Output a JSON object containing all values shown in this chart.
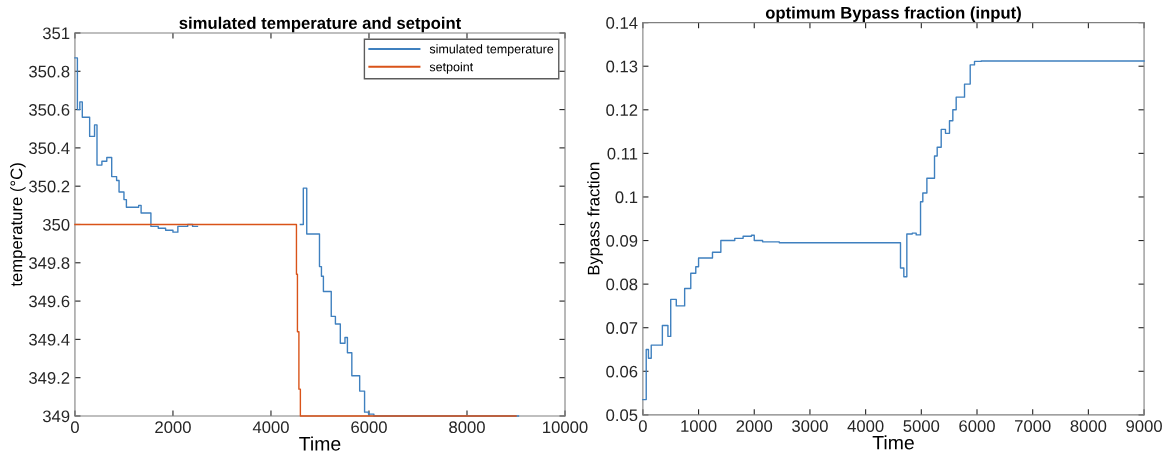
{
  "chart_data": [
    {
      "type": "step",
      "title": "simulated temperature and setpoint",
      "xlabel": "Time",
      "ylabel": "temperature (°C)",
      "legend": "top right",
      "xlim": [
        0,
        10000
      ],
      "ylim": [
        349,
        351
      ],
      "xticks": [
        0,
        2000,
        4000,
        6000,
        8000,
        10000
      ],
      "yticks": [
        349,
        349.2,
        349.4,
        349.6,
        349.8,
        350,
        350.2,
        350.4,
        350.6,
        350.8,
        351
      ],
      "series": [
        {
          "name": "simulated temperature",
          "color": "#3f80bf",
          "x": [
            0,
            50,
            100,
            150,
            300,
            400,
            450,
            550,
            650,
            750,
            850,
            900,
            1000,
            1050,
            1300,
            1350,
            1550,
            1700,
            1850,
            2000,
            2100,
            2300,
            2400,
            2450,
            2500,
            4600,
            4660,
            4730,
            4930,
            4990,
            5030,
            5070,
            5230,
            5315,
            5415,
            5510,
            5560,
            5650,
            5810,
            5910,
            5990,
            6100,
            9050
          ],
          "values": [
            350.87,
            350.6,
            350.64,
            350.56,
            350.46,
            350.52,
            350.31,
            350.33,
            350.35,
            350.25,
            350.23,
            350.17,
            350.13,
            350.09,
            350.1,
            350.06,
            349.99,
            349.98,
            349.97,
            349.96,
            349.99,
            350.0,
            349.99,
            349.99,
            null,
            350.0,
            350.19,
            349.95,
            349.95,
            349.78,
            349.73,
            349.65,
            349.52,
            349.48,
            349.38,
            349.41,
            349.33,
            349.21,
            349.13,
            349.02,
            349.01,
            349.0,
            349.0
          ]
        },
        {
          "name": "setpoint",
          "color": "#d95319",
          "x": [
            0,
            4520,
            4540,
            4570,
            4600,
            9000
          ],
          "values": [
            350.0,
            349.74,
            349.44,
            349.14,
            349.0,
            349.0
          ]
        }
      ]
    },
    {
      "type": "step",
      "title": "optimum Bypass fraction (input)",
      "xlabel": "Time",
      "ylabel": "Bypass fraction",
      "legend": false,
      "xlim": [
        0,
        9000
      ],
      "ylim": [
        0.05,
        0.14
      ],
      "xticks": [
        0,
        1000,
        2000,
        3000,
        4000,
        5000,
        6000,
        7000,
        8000,
        9000
      ],
      "yticks": [
        0.05,
        0.06,
        0.07,
        0.08,
        0.09,
        0.1,
        0.11,
        0.12,
        0.13,
        0.14
      ],
      "series": [
        {
          "color": "#3f80bf",
          "x": [
            0,
            60,
            100,
            150,
            350,
            450,
            500,
            600,
            750,
            860,
            950,
            1000,
            1250,
            1400,
            1650,
            1800,
            1950,
            2000,
            2150,
            2450,
            4626,
            4686,
            4740,
            4837,
            4908,
            4986,
            5027,
            5100,
            5237,
            5285,
            5357,
            5434,
            5506,
            5566,
            5626,
            5776,
            5878,
            5955,
            6075,
            9000
          ],
          "values": [
            0.0535,
            0.065,
            0.063,
            0.066,
            0.0705,
            0.068,
            0.0765,
            0.075,
            0.079,
            0.0825,
            0.084,
            0.086,
            0.0873,
            0.09,
            0.0905,
            0.091,
            0.0912,
            0.09,
            0.0897,
            0.0895,
            0.0837,
            0.0817,
            0.0915,
            0.0917,
            0.0913,
            0.0989,
            0.1009,
            0.1043,
            0.1094,
            0.1114,
            0.1155,
            0.1146,
            0.1175,
            0.12,
            0.1229,
            0.1259,
            0.1303,
            0.1311,
            0.1312,
            0.1312
          ]
        }
      ]
    }
  ]
}
